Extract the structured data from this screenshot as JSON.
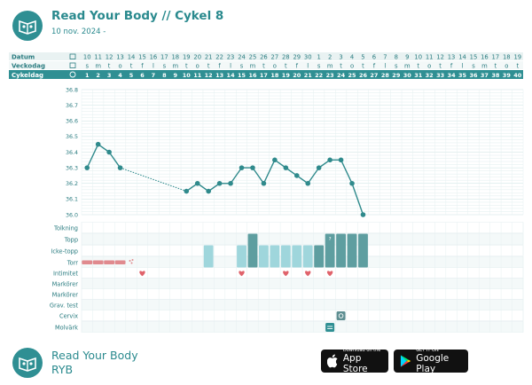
{
  "header": {
    "title": "Read Your Body // Cykel 8",
    "subtitle": "10 nov. 2024 -"
  },
  "rows": {
    "datum_label": "Datum",
    "veckodag_label": "Veckodag",
    "cykeldag_label": "Cykeldag",
    "dates": [
      "10",
      "11",
      "12",
      "13",
      "14",
      "15",
      "16",
      "17",
      "18",
      "19",
      "20",
      "21",
      "22",
      "23",
      "24",
      "25",
      "26",
      "27",
      "28",
      "29",
      "30",
      "1",
      "2",
      "3",
      "4",
      "5",
      "6",
      "7",
      "8",
      "9",
      "10",
      "11",
      "12",
      "13",
      "14",
      "15",
      "16",
      "17",
      "18",
      "19"
    ],
    "weekdays": [
      "s",
      "m",
      "t",
      "o",
      "t",
      "f",
      "l",
      "s",
      "m",
      "t",
      "o",
      "t",
      "f",
      "l",
      "s",
      "m",
      "t",
      "o",
      "t",
      "f",
      "l",
      "s",
      "m",
      "t",
      "o",
      "t",
      "f",
      "l",
      "s",
      "m",
      "t",
      "o",
      "t",
      "f",
      "l",
      "s",
      "m",
      "t",
      "o",
      "t"
    ],
    "cycle_days": [
      "1",
      "2",
      "3",
      "4",
      "5",
      "6",
      "7",
      "8",
      "9",
      "10",
      "11",
      "12",
      "13",
      "14",
      "15",
      "16",
      "17",
      "18",
      "19",
      "20",
      "21",
      "22",
      "23",
      "24",
      "25",
      "26",
      "27",
      "28",
      "29",
      "30",
      "31",
      "32",
      "33",
      "34",
      "35",
      "36",
      "37",
      "38",
      "39",
      "40"
    ]
  },
  "chart_data": {
    "type": "line",
    "ylim": [
      36.0,
      36.8
    ],
    "yticks": [
      "36.8",
      "36.7",
      "36.6",
      "36.5",
      "36.4",
      "36.3",
      "36.2",
      "36.1",
      "36.0"
    ],
    "x": [
      1,
      2,
      3,
      4,
      10,
      11,
      12,
      13,
      14,
      15,
      16,
      17,
      18,
      19,
      20,
      21,
      22,
      23,
      24,
      25,
      26
    ],
    "values": [
      36.3,
      36.45,
      36.4,
      36.3,
      36.15,
      36.2,
      36.15,
      36.2,
      36.2,
      36.3,
      36.3,
      36.2,
      36.35,
      36.3,
      36.25,
      36.2,
      36.3,
      36.35,
      36.35,
      36.2,
      36.0
    ],
    "dotted_segment": [
      4,
      10
    ],
    "line_color": "#2f8a8c"
  },
  "observations": {
    "labels": [
      "Tolkning",
      "Topp",
      "Icke-topp",
      "Torr",
      "Intimitet",
      "Markörer",
      "Markörer",
      "Grav. test",
      "Cervix",
      "Molvärk"
    ],
    "topp_days": [
      16,
      23,
      24,
      25,
      26
    ],
    "topp_mark": "?",
    "icketopp_days": [
      12,
      15,
      17,
      18,
      19,
      20,
      21,
      22
    ],
    "torr_days": [
      1,
      2,
      3,
      4
    ],
    "intimitet_days": [
      6,
      15,
      19,
      21,
      23
    ],
    "cervix_day": 24,
    "molvark_day": 23,
    "colors": {
      "topp": "#5e9ea0",
      "icketopp": "#9fd6dc",
      "torr": "#e08a8e",
      "heart": "#e0636b",
      "accent": "#2f8f93"
    }
  },
  "footer": {
    "brand_line1": "Read Your Body",
    "brand_line2": "RYB",
    "appstore_small": "Download on the",
    "appstore_big": "App Store",
    "googleplay_small": "GET IT ON",
    "googleplay_big": "Google Play"
  }
}
